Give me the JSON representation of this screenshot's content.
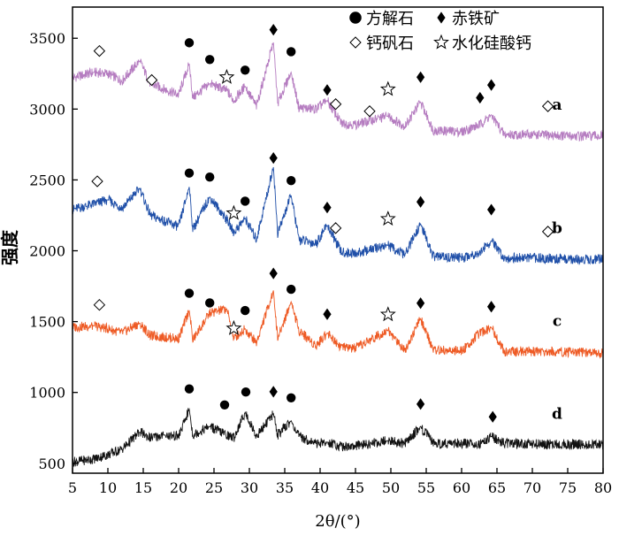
{
  "chart_data": {
    "type": "line",
    "xlabel": "2θ/(°)",
    "ylabel": "强度",
    "xlim": [
      5,
      80
    ],
    "ylim": [
      430,
      3720
    ],
    "x_ticks": [
      "5",
      "10",
      "15",
      "20",
      "25",
      "30",
      "35",
      "40",
      "45",
      "50",
      "55",
      "60",
      "65",
      "70",
      "75",
      "80"
    ],
    "y_ticks": [
      "500",
      "1000",
      "1500",
      "2000",
      "2500",
      "3000",
      "3500"
    ],
    "legend": {
      "placement": "top-right",
      "entries": [
        {
          "symbol": "circle",
          "label": "方解石"
        },
        {
          "symbol": "diamond",
          "label": "赤铁矿"
        },
        {
          "symbol": "diamond-open",
          "label": "钙矾石"
        },
        {
          "symbol": "star",
          "label": "水化硅酸钙"
        }
      ]
    },
    "series": [
      {
        "name": "a",
        "color": "#b57cc0",
        "points": [
          [
            5,
            3220
          ],
          [
            8,
            3260
          ],
          [
            10,
            3250
          ],
          [
            12,
            3200
          ],
          [
            14.5,
            3340
          ],
          [
            16,
            3180
          ],
          [
            20,
            3100
          ],
          [
            21.5,
            3320
          ],
          [
            22,
            3080
          ],
          [
            24.4,
            3180
          ],
          [
            26.8,
            3130
          ],
          [
            27.8,
            3060
          ],
          [
            29.4,
            3160
          ],
          [
            31,
            3020
          ],
          [
            33.4,
            3470
          ],
          [
            34,
            3040
          ],
          [
            35.9,
            3260
          ],
          [
            37,
            3010
          ],
          [
            39.4,
            3000
          ],
          [
            41,
            3060
          ],
          [
            43,
            2900
          ],
          [
            45,
            2890
          ],
          [
            49.5,
            2950
          ],
          [
            52,
            2880
          ],
          [
            54.2,
            3050
          ],
          [
            56,
            2850
          ],
          [
            60,
            2840
          ],
          [
            62.6,
            2890
          ],
          [
            64.2,
            2960
          ],
          [
            66,
            2820
          ],
          [
            70,
            2820
          ],
          [
            75,
            2810
          ],
          [
            80,
            2810
          ]
        ],
        "markers": [
          {
            "x": 21.5,
            "y": 3468,
            "symbol": "circle"
          },
          {
            "x": 24.4,
            "y": 3350,
            "symbol": "circle"
          },
          {
            "x": 29.4,
            "y": 3275,
            "symbol": "circle"
          },
          {
            "x": 35.9,
            "y": 3405,
            "symbol": "circle"
          },
          {
            "x": 33.4,
            "y": 3560,
            "symbol": "diamond"
          },
          {
            "x": 41.0,
            "y": 3135,
            "symbol": "diamond"
          },
          {
            "x": 54.2,
            "y": 3225,
            "symbol": "diamond"
          },
          {
            "x": 62.6,
            "y": 3080,
            "symbol": "diamond"
          },
          {
            "x": 64.2,
            "y": 3170,
            "symbol": "diamond"
          },
          {
            "x": 8.8,
            "y": 3410,
            "symbol": "diamond-open"
          },
          {
            "x": 16.2,
            "y": 3205,
            "symbol": "diamond-open"
          },
          {
            "x": 42.2,
            "y": 3035,
            "symbol": "diamond-open"
          },
          {
            "x": 47.0,
            "y": 2985,
            "symbol": "diamond-open"
          },
          {
            "x": 72.2,
            "y": 3020,
            "symbol": "diamond-open"
          },
          {
            "x": 26.8,
            "y": 3225,
            "symbol": "star"
          },
          {
            "x": 49.6,
            "y": 3140,
            "symbol": "star"
          }
        ]
      },
      {
        "name": "b",
        "color": "#1f4fa8",
        "points": [
          [
            5,
            2290
          ],
          [
            8,
            2330
          ],
          [
            10,
            2360
          ],
          [
            12,
            2300
          ],
          [
            14.5,
            2440
          ],
          [
            16,
            2250
          ],
          [
            20,
            2170
          ],
          [
            21.5,
            2450
          ],
          [
            22,
            2150
          ],
          [
            24.4,
            2380
          ],
          [
            26.8,
            2220
          ],
          [
            27.8,
            2130
          ],
          [
            29.4,
            2230
          ],
          [
            31,
            2080
          ],
          [
            33.4,
            2590
          ],
          [
            34,
            2120
          ],
          [
            35.9,
            2390
          ],
          [
            37,
            2080
          ],
          [
            39.4,
            2050
          ],
          [
            41,
            2180
          ],
          [
            43,
            1990
          ],
          [
            45,
            1980
          ],
          [
            49.5,
            2040
          ],
          [
            52,
            1970
          ],
          [
            54.2,
            2190
          ],
          [
            56,
            1960
          ],
          [
            60,
            1950
          ],
          [
            62.6,
            1990
          ],
          [
            64.2,
            2070
          ],
          [
            66,
            1950
          ],
          [
            70,
            1950
          ],
          [
            75,
            1940
          ],
          [
            80,
            1940
          ]
        ],
        "markers": [
          {
            "x": 21.5,
            "y": 2548,
            "symbol": "circle"
          },
          {
            "x": 24.4,
            "y": 2520,
            "symbol": "circle"
          },
          {
            "x": 29.4,
            "y": 2350,
            "symbol": "circle"
          },
          {
            "x": 35.9,
            "y": 2495,
            "symbol": "circle"
          },
          {
            "x": 33.4,
            "y": 2655,
            "symbol": "diamond"
          },
          {
            "x": 41.0,
            "y": 2305,
            "symbol": "diamond"
          },
          {
            "x": 54.2,
            "y": 2345,
            "symbol": "diamond"
          },
          {
            "x": 64.2,
            "y": 2290,
            "symbol": "diamond"
          },
          {
            "x": 8.5,
            "y": 2490,
            "symbol": "diamond-open"
          },
          {
            "x": 42.2,
            "y": 2160,
            "symbol": "diamond-open"
          },
          {
            "x": 72.2,
            "y": 2135,
            "symbol": "diamond-open"
          },
          {
            "x": 27.8,
            "y": 2265,
            "symbol": "star"
          },
          {
            "x": 49.6,
            "y": 2225,
            "symbol": "star"
          }
        ]
      },
      {
        "name": "c",
        "color": "#ee5a24",
        "points": [
          [
            5,
            1460
          ],
          [
            8,
            1470
          ],
          [
            10,
            1450
          ],
          [
            12,
            1420
          ],
          [
            14.5,
            1490
          ],
          [
            16,
            1400
          ],
          [
            20,
            1380
          ],
          [
            21.5,
            1580
          ],
          [
            22,
            1370
          ],
          [
            24.4,
            1560
          ],
          [
            26.8,
            1590
          ],
          [
            27.8,
            1380
          ],
          [
            29.4,
            1450
          ],
          [
            31,
            1350
          ],
          [
            33.4,
            1720
          ],
          [
            34,
            1380
          ],
          [
            35.9,
            1640
          ],
          [
            37,
            1440
          ],
          [
            39.4,
            1330
          ],
          [
            41,
            1420
          ],
          [
            43,
            1320
          ],
          [
            45,
            1310
          ],
          [
            49.5,
            1440
          ],
          [
            52,
            1300
          ],
          [
            54.2,
            1520
          ],
          [
            56,
            1300
          ],
          [
            60,
            1290
          ],
          [
            62.6,
            1420
          ],
          [
            64.2,
            1460
          ],
          [
            66,
            1290
          ],
          [
            70,
            1290
          ],
          [
            75,
            1285
          ],
          [
            80,
            1280
          ]
        ],
        "markers": [
          {
            "x": 21.5,
            "y": 1700,
            "symbol": "circle"
          },
          {
            "x": 24.4,
            "y": 1632,
            "symbol": "circle"
          },
          {
            "x": 29.4,
            "y": 1578,
            "symbol": "circle"
          },
          {
            "x": 35.9,
            "y": 1728,
            "symbol": "circle"
          },
          {
            "x": 33.4,
            "y": 1840,
            "symbol": "diamond"
          },
          {
            "x": 41.0,
            "y": 1552,
            "symbol": "diamond"
          },
          {
            "x": 54.2,
            "y": 1630,
            "symbol": "diamond"
          },
          {
            "x": 64.2,
            "y": 1605,
            "symbol": "diamond"
          },
          {
            "x": 8.8,
            "y": 1618,
            "symbol": "diamond-open"
          },
          {
            "x": 27.8,
            "y": 1452,
            "symbol": "star"
          },
          {
            "x": 49.6,
            "y": 1550,
            "symbol": "star"
          }
        ]
      },
      {
        "name": "d",
        "color": "#111111",
        "points": [
          [
            5,
            510
          ],
          [
            8,
            530
          ],
          [
            10,
            560
          ],
          [
            12,
            600
          ],
          [
            14.5,
            720
          ],
          [
            16,
            680
          ],
          [
            18,
            700
          ],
          [
            20,
            690
          ],
          [
            21.5,
            880
          ],
          [
            22,
            700
          ],
          [
            24.4,
            760
          ],
          [
            26.8,
            700
          ],
          [
            27.8,
            680
          ],
          [
            29.4,
            860
          ],
          [
            31,
            690
          ],
          [
            33.4,
            850
          ],
          [
            34,
            700
          ],
          [
            35.9,
            800
          ],
          [
            37,
            690
          ],
          [
            39.4,
            640
          ],
          [
            41,
            650
          ],
          [
            43,
            620
          ],
          [
            45,
            620
          ],
          [
            49.5,
            660
          ],
          [
            52,
            640
          ],
          [
            54.2,
            760
          ],
          [
            56,
            640
          ],
          [
            60,
            640
          ],
          [
            62.6,
            640
          ],
          [
            64.2,
            690
          ],
          [
            66,
            640
          ],
          [
            70,
            635
          ],
          [
            75,
            635
          ],
          [
            80,
            630
          ]
        ],
        "markers": [
          {
            "x": 21.5,
            "y": 1025,
            "symbol": "circle"
          },
          {
            "x": 26.5,
            "y": 912,
            "symbol": "circle"
          },
          {
            "x": 29.5,
            "y": 1003,
            "symbol": "circle"
          },
          {
            "x": 35.9,
            "y": 962,
            "symbol": "circle"
          },
          {
            "x": 33.4,
            "y": 1005,
            "symbol": "diamond"
          },
          {
            "x": 54.2,
            "y": 918,
            "symbol": "diamond"
          },
          {
            "x": 64.4,
            "y": 828,
            "symbol": "diamond"
          }
        ]
      }
    ]
  }
}
